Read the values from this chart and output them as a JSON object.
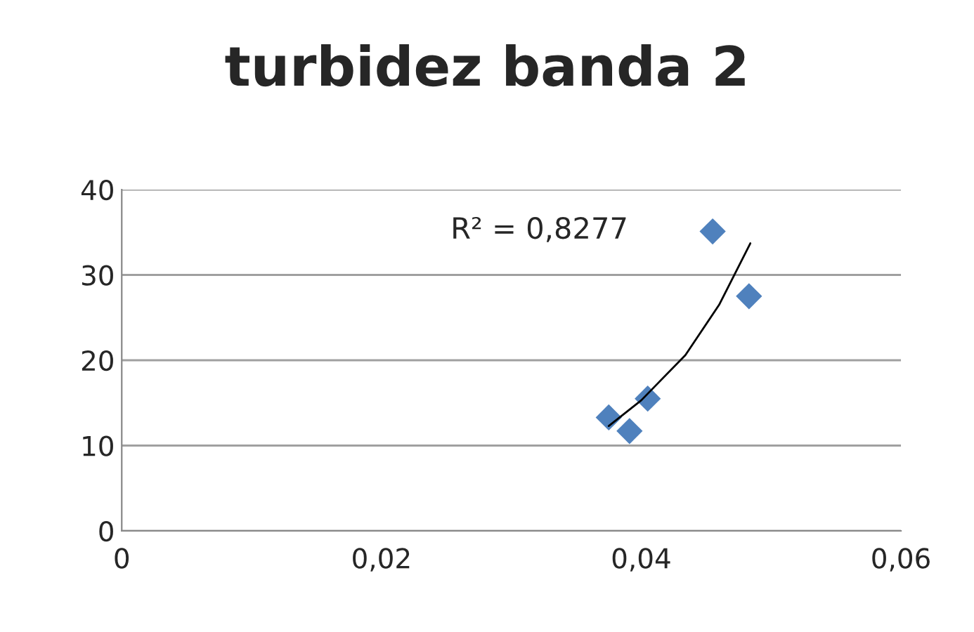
{
  "chart_data": {
    "type": "scatter",
    "title": "turbidez banda 2",
    "series": [
      {
        "color": "#4f81bd",
        "marker": "diamond",
        "x": [
          0.0375,
          0.0391,
          0.0405,
          0.0455,
          0.0483
        ],
        "values": [
          13.3,
          11.7,
          15.5,
          35.1,
          27.5
        ]
      },
      {
        "type": "line",
        "color": "#000000",
        "line_style": "solid",
        "marker": "none",
        "x": [
          0.0375,
          0.04,
          0.0434,
          0.046,
          0.0484
        ],
        "values": [
          12.3,
          15.3,
          20.6,
          26.5,
          33.7
        ]
      }
    ],
    "annotations": [
      "R² = 0,8277"
    ],
    "xlim": [
      0,
      0.06
    ],
    "xticks": [
      {
        "value": 0,
        "label": "0"
      },
      {
        "value": 0.02,
        "label": "0,02"
      },
      {
        "value": 0.04,
        "label": "0,04"
      },
      {
        "value": 0.06,
        "label": "0,06"
      }
    ],
    "ylim": [
      0,
      40
    ],
    "yticks": [
      0,
      10,
      20,
      30,
      40
    ],
    "grid": "y",
    "legend": false
  }
}
